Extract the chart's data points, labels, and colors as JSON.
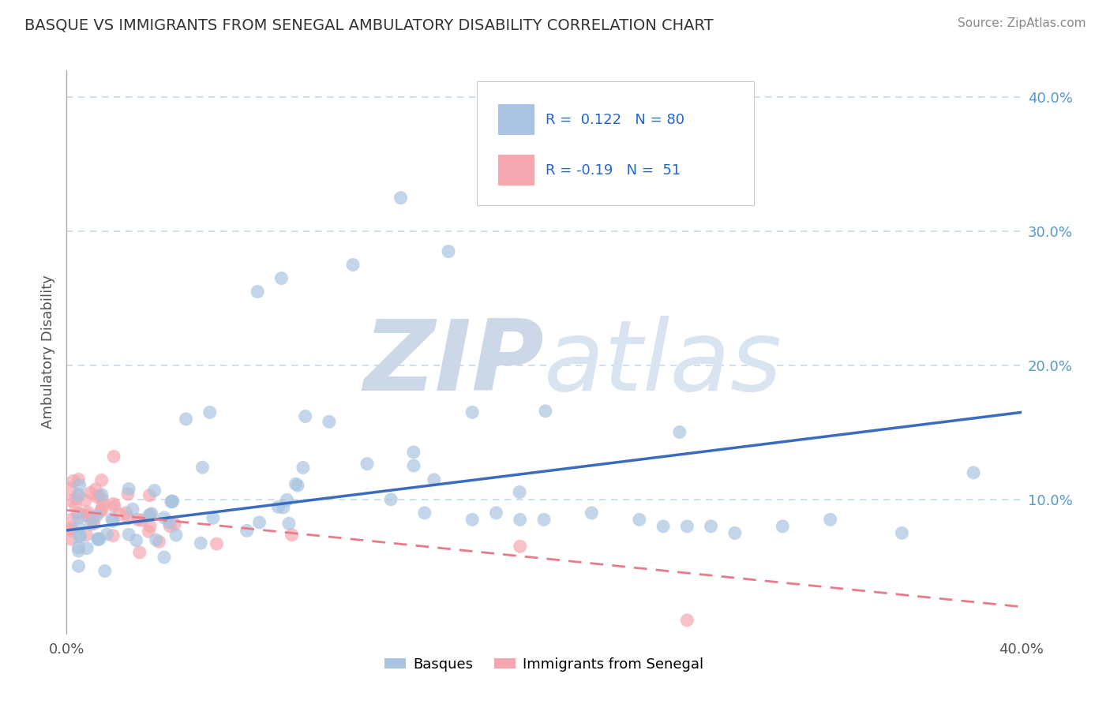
{
  "title": "BASQUE VS IMMIGRANTS FROM SENEGAL AMBULATORY DISABILITY CORRELATION CHART",
  "source": "Source: ZipAtlas.com",
  "ylabel": "Ambulatory Disability",
  "legend_labels": [
    "Basques",
    "Immigrants from Senegal"
  ],
  "R_basque": 0.122,
  "N_basque": 80,
  "R_senegal": -0.19,
  "N_senegal": 51,
  "xlim": [
    0.0,
    0.4
  ],
  "ylim": [
    0.0,
    0.42
  ],
  "color_basque": "#a8c4e0",
  "color_senegal": "#f4a7b0",
  "line_color_basque": "#3a6bbf",
  "line_color_senegal": "#e87a8a",
  "watermark_color": "#dce8f0",
  "background_color": "#ffffff",
  "grid_color": "#c8d8e8",
  "blue_line_x0": 0.0,
  "blue_line_y0": 0.077,
  "blue_line_x1": 0.4,
  "blue_line_y1": 0.165,
  "red_line_x0": 0.0,
  "red_line_y0": 0.092,
  "red_line_x1": 0.4,
  "red_line_y1": 0.02
}
